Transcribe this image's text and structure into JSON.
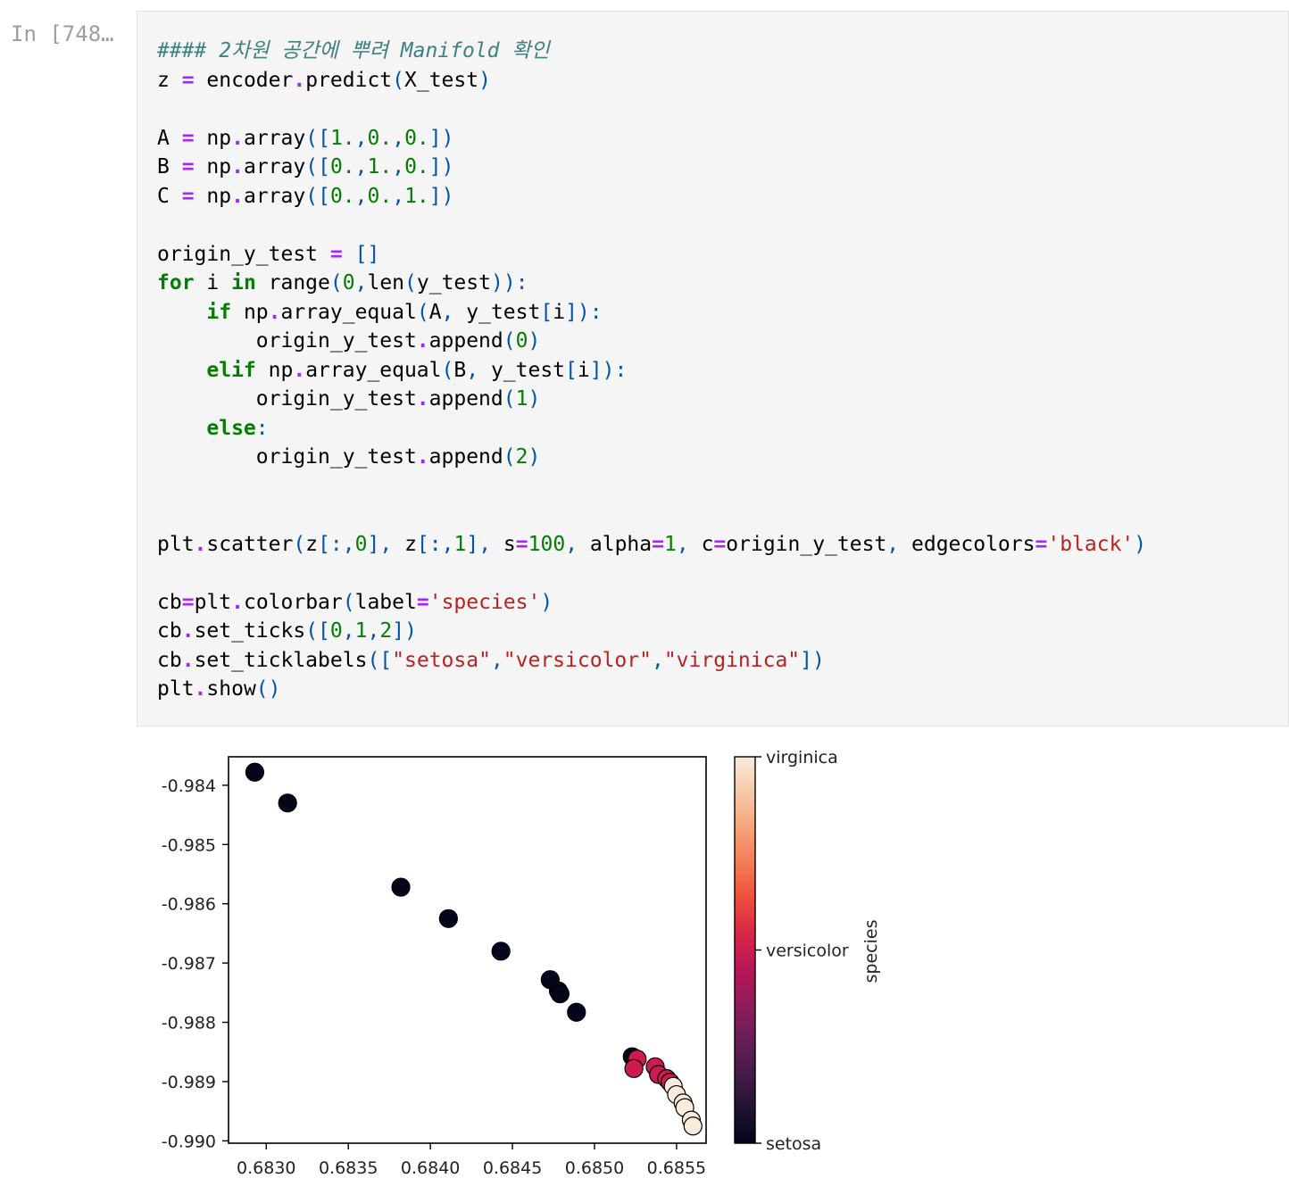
{
  "cell": {
    "prompt": "In [748…",
    "code_lines": [
      "#### 2차원 공간에 뿌려 Manifold 확인",
      "z = encoder.predict(X_test)",
      "",
      "A = np.array([1.,0.,0.])",
      "B = np.array([0.,1.,0.])",
      "C = np.array([0.,0.,1.])",
      "",
      "origin_y_test = []",
      "for i in range(0,len(y_test)):",
      "    if np.array_equal(A, y_test[i]):",
      "        origin_y_test.append(0)",
      "    elif np.array_equal(B, y_test[i]):",
      "        origin_y_test.append(1)",
      "    else:",
      "        origin_y_test.append(2)",
      "",
      "",
      "plt.scatter(z[:,0], z[:,1], s=100, alpha=1, c=origin_y_test, edgecolors='black')",
      "",
      "cb=plt.colorbar(label='species')",
      "cb.set_ticks([0,1,2])",
      "cb.set_ticklabels([\"setosa\",\"versicolor\",\"virginica\"])",
      "plt.show()"
    ]
  },
  "chart_data": {
    "type": "scatter",
    "xlabel": "",
    "ylabel": "",
    "xlim": [
      0.68277,
      0.68568
    ],
    "ylim": [
      -0.99004,
      -0.98352
    ],
    "xticks": [
      0.683,
      0.6835,
      0.684,
      0.6845,
      0.685,
      0.6855
    ],
    "xtick_labels": [
      "0.6830",
      "0.6835",
      "0.6840",
      "0.6845",
      "0.6850",
      "0.6855"
    ],
    "yticks": [
      -0.984,
      -0.985,
      -0.986,
      -0.987,
      -0.988,
      -0.989,
      -0.99
    ],
    "ytick_labels": [
      "-0.984",
      "-0.985",
      "-0.986",
      "-0.987",
      "-0.988",
      "-0.989",
      "-0.990"
    ],
    "grid": false,
    "colormap": "rocket",
    "colors": {
      "setosa": "#03051a",
      "versicolor": "#cb1b4f",
      "virginica": "#faebdd",
      "edge": "#000000"
    },
    "colorbar": {
      "label": "species",
      "ticks": [
        0,
        1,
        2
      ],
      "ticklabels": [
        "setosa",
        "versicolor",
        "virginica"
      ],
      "stops": [
        "#03051a",
        "#221331",
        "#451c47",
        "#6a1f56",
        "#921c5b",
        "#b91657",
        "#d92847",
        "#ed503e",
        "#f47d57",
        "#f6a47c",
        "#f6c9a8",
        "#faebdd"
      ]
    },
    "points": [
      {
        "x": 0.68293,
        "y": -0.98378,
        "c": 0
      },
      {
        "x": 0.68313,
        "y": -0.9843,
        "c": 0
      },
      {
        "x": 0.68382,
        "y": -0.98572,
        "c": 0
      },
      {
        "x": 0.68411,
        "y": -0.98625,
        "c": 0
      },
      {
        "x": 0.68443,
        "y": -0.9868,
        "c": 0
      },
      {
        "x": 0.68473,
        "y": -0.98728,
        "c": 0
      },
      {
        "x": 0.68478,
        "y": -0.98747,
        "c": 0
      },
      {
        "x": 0.68479,
        "y": -0.98752,
        "c": 0
      },
      {
        "x": 0.68489,
        "y": -0.98783,
        "c": 0
      },
      {
        "x": 0.68523,
        "y": -0.98858,
        "c": 0
      },
      {
        "x": 0.68526,
        "y": -0.98862,
        "c": 1
      },
      {
        "x": 0.68524,
        "y": -0.98878,
        "c": 1
      },
      {
        "x": 0.68537,
        "y": -0.98875,
        "c": 1
      },
      {
        "x": 0.68539,
        "y": -0.98888,
        "c": 1
      },
      {
        "x": 0.68544,
        "y": -0.98895,
        "c": 1
      },
      {
        "x": 0.68546,
        "y": -0.98901,
        "c": 1
      },
      {
        "x": 0.68548,
        "y": -0.98908,
        "c": 2
      },
      {
        "x": 0.6855,
        "y": -0.98922,
        "c": 2
      },
      {
        "x": 0.68554,
        "y": -0.98936,
        "c": 2
      },
      {
        "x": 0.68555,
        "y": -0.98944,
        "c": 2
      },
      {
        "x": 0.68559,
        "y": -0.98965,
        "c": 2
      },
      {
        "x": 0.6856,
        "y": -0.98975,
        "c": 2
      }
    ]
  }
}
